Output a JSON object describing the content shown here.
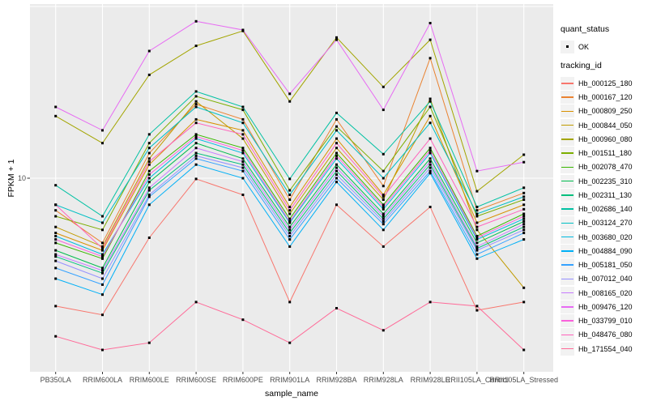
{
  "legend": {
    "quant_status_title": "quant_status",
    "ok_label": "OK",
    "tracking_id_title": "tracking_id"
  },
  "colors": {
    "panel_bg": "#EBEBEB",
    "grid": "#FFFFFF",
    "tick_mark": "#333333",
    "tick_text": "#4D4D4D",
    "marker": "#000000",
    "legend_key_bg": "#F2F2F2"
  },
  "chart_data": {
    "type": "line",
    "title": "",
    "xlabel": "sample_name",
    "ylabel": "FPKM + 1",
    "y_scale": "log10",
    "y_tick_labels": [
      "10"
    ],
    "y_grid_values": [
      100,
      10
    ],
    "ylim": [
      0.76,
      103
    ],
    "grid": true,
    "legend_position": "right",
    "marker": "black-square",
    "quant_status": {
      "title": "quant_status",
      "values": [
        "OK"
      ]
    },
    "categories": [
      "PB350LA",
      "RRIM600LA",
      "RRIM600LE",
      "RRIM600SE",
      "RRIM600PE",
      "RRIM901LA",
      "RRIM928BA",
      "RRIM928LA",
      "RRIM928LE",
      "RRII105LA_Control",
      "RRII105LA_Stressed"
    ],
    "series": [
      {
        "name": "Hb_000125_180",
        "color": "#F8766D",
        "values": [
          1.8,
          1.6,
          4.5,
          9.9,
          8.0,
          1.9,
          7.0,
          4.0,
          6.8,
          1.7,
          1.9
        ]
      },
      {
        "name": "Hb_000167_120",
        "color": "#EA8331",
        "values": [
          6.5,
          4.2,
          14,
          27,
          22,
          7.5,
          22,
          9.0,
          50,
          6.5,
          8.2
        ]
      },
      {
        "name": "Hb_000809_250",
        "color": "#D89000",
        "values": [
          4.8,
          3.8,
          12,
          22,
          19,
          6.8,
          17,
          8.0,
          23,
          5.5,
          7.0
        ]
      },
      {
        "name": "Hb_000844_050",
        "color": "#C09B00",
        "values": [
          5.2,
          4.0,
          13,
          28,
          17,
          6.2,
          15,
          7.5,
          29,
          5.0,
          2.3
        ]
      },
      {
        "name": "Hb_000960_080",
        "color": "#A3A500",
        "values": [
          23,
          16,
          40,
          59,
          72,
          28,
          66,
          34,
          64,
          8.4,
          13.7
        ]
      },
      {
        "name": "Hb_001511_180",
        "color": "#7CAE00",
        "values": [
          6.0,
          5.0,
          16,
          30,
          25,
          8.5,
          20,
          11,
          26,
          6.0,
          7.5
        ]
      },
      {
        "name": "Hb_002078_470",
        "color": "#39B600",
        "values": [
          4.2,
          3.4,
          11,
          18,
          15,
          5.8,
          14,
          7.0,
          15,
          4.6,
          6.2
        ]
      },
      {
        "name": "Hb_002235_310",
        "color": "#00BB4E",
        "values": [
          3.8,
          3.0,
          9.5,
          16,
          13,
          5.2,
          12,
          6.2,
          13,
          4.2,
          5.6
        ]
      },
      {
        "name": "Hb_002311_130",
        "color": "#00BF7D",
        "values": [
          3.5,
          2.8,
          8.5,
          14,
          12,
          4.8,
          11,
          5.8,
          12,
          3.9,
          5.2
        ]
      },
      {
        "name": "Hb_002686_140",
        "color": "#00C1A3",
        "values": [
          9.1,
          6.0,
          18,
          32,
          26,
          9.9,
          24,
          13.8,
          28,
          6.8,
          8.8
        ]
      },
      {
        "name": "Hb_003124_270",
        "color": "#00BFC4",
        "values": [
          7.0,
          5.5,
          15,
          26,
          21,
          8.0,
          19,
          10,
          21,
          6.2,
          7.8
        ]
      },
      {
        "name": "Hb_003680_020",
        "color": "#00BAE0",
        "values": [
          4.6,
          3.6,
          10,
          17,
          14,
          5.5,
          13,
          6.6,
          14,
          4.4,
          5.8
        ]
      },
      {
        "name": "Hb_004884_090",
        "color": "#00B0F6",
        "values": [
          2.6,
          2.1,
          7.0,
          12,
          10,
          4.0,
          9.5,
          5.0,
          10.7,
          3.4,
          4.4
        ]
      },
      {
        "name": "Hb_005181_050",
        "color": "#35A2FF",
        "values": [
          3.0,
          2.4,
          7.8,
          13,
          11,
          4.4,
          10,
          5.4,
          11,
          3.6,
          4.8
        ]
      },
      {
        "name": "Hb_007012_040",
        "color": "#9590FF",
        "values": [
          3.3,
          2.6,
          8.0,
          13.5,
          11.5,
          4.6,
          10.5,
          5.6,
          11.5,
          3.8,
          5.0
        ]
      },
      {
        "name": "Hb_008165_020",
        "color": "#C77CFF",
        "values": [
          3.6,
          2.9,
          8.8,
          15,
          12.5,
          5.0,
          11.5,
          6.0,
          12.5,
          4.0,
          5.4
        ]
      },
      {
        "name": "Hb_009476_120",
        "color": "#E76BF3",
        "values": [
          26,
          19,
          55,
          82,
          73,
          31,
          64,
          25,
          80,
          11,
          12.4
        ]
      },
      {
        "name": "Hb_033799_010",
        "color": "#FA62DB",
        "values": [
          4.4,
          3.5,
          10.5,
          17.5,
          14.5,
          5.6,
          13.5,
          6.8,
          14.5,
          4.5,
          6.0
        ]
      },
      {
        "name": "Hb_048476_080",
        "color": "#FF62BC",
        "values": [
          7.0,
          3.9,
          12.5,
          21,
          18,
          6.5,
          16,
          7.8,
          17,
          5.2,
          6.6
        ]
      },
      {
        "name": "Hb_171554_040",
        "color": "#FF6A98",
        "values": [
          1.2,
          1.0,
          1.1,
          1.9,
          1.5,
          1.1,
          1.75,
          1.3,
          1.9,
          1.8,
          1.0
        ]
      }
    ]
  }
}
